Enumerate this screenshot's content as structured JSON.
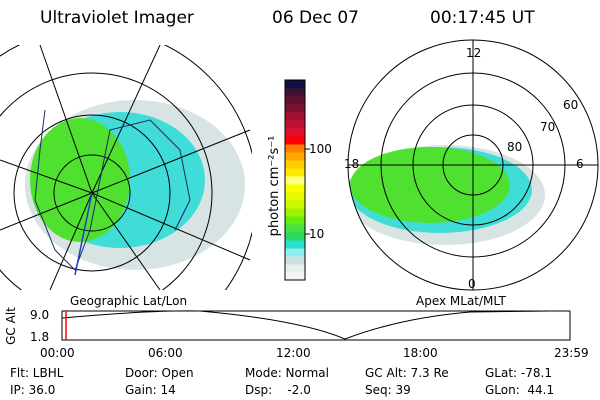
{
  "header": {
    "instrument": "Ultraviolet Imager",
    "date": "06 Dec 07",
    "time": "00:17:45 UT"
  },
  "left_map": {
    "label": "Geographic Lat/Lon"
  },
  "right_map": {
    "label": "Apex MLat/MLT",
    "mlt_labels": [
      "12",
      "18",
      "6",
      "0"
    ],
    "lat_labels": [
      "60",
      "70",
      "80"
    ]
  },
  "colorbar": {
    "unit_label": "photon cm⁻²s⁻¹",
    "ticks": [
      "100",
      "10"
    ],
    "scale": "log",
    "colors": [
      "#f4f8f4",
      "#e6f0ea",
      "#d0e0e0",
      "#90ecf0",
      "#28e0d0",
      "#28d860",
      "#48e040",
      "#60f010",
      "#a0f000",
      "#c8f800",
      "#e8f800",
      "#f8ff00",
      "#ffff80",
      "#ffe800",
      "#ffcc00",
      "#ffa800",
      "#ff8000",
      "#ff0000",
      "#e01030",
      "#c01030",
      "#a01030",
      "#801030",
      "#601030",
      "#401030",
      "#101040"
    ]
  },
  "altitude_strip": {
    "axis_label": "GC Alt",
    "y_ticks": [
      "9.0",
      "1.8"
    ],
    "x_ticks": [
      "00:00",
      "06:00",
      "12:00",
      "18:00",
      "23:59"
    ],
    "current_marker_color": "#ff0000"
  },
  "info": {
    "row1": [
      "Flt: LBHL",
      "Door: Open",
      "Mode: Normal",
      "GC Alt: 7.3 Re",
      "GLat: -78.1"
    ],
    "row2": [
      "IP: 36.0",
      "Gain: 14",
      "Dsp:    -2.0",
      "Seq: 39",
      "GLon:  44.1"
    ]
  }
}
